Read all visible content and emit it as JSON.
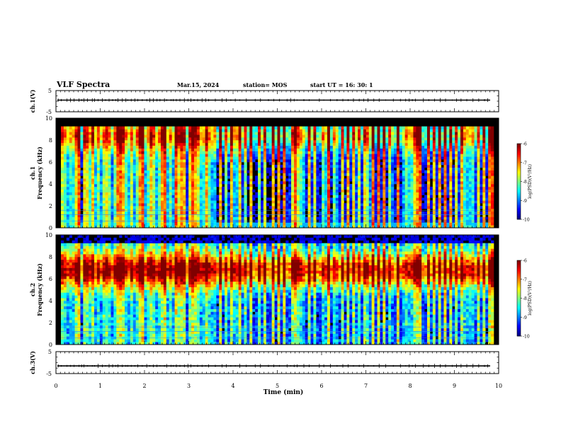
{
  "header": {
    "title": "VLF Spectra",
    "date": "Mar.15, 2024",
    "station": "station= MOS",
    "start_ut": "start  UT  =  16: 30: 1"
  },
  "chart_data": [
    {
      "type": "line",
      "id": "ch1-waveform",
      "ylabel": "ch.1(V)",
      "yticks": [
        "5",
        "-5"
      ],
      "ylim": [
        -5,
        5
      ],
      "baseline": 0.5
    },
    {
      "type": "heatmap",
      "id": "ch1-spectrogram",
      "ylabel": "ch.1\nFrequency (kHz)",
      "ylabel_lines": [
        "ch.1",
        "Frequency (kHz)"
      ],
      "ylim": [
        0,
        10
      ],
      "yticks": [
        "0",
        "2",
        "4",
        "6",
        "8",
        "10"
      ],
      "colorbar": {
        "label": "log(PSD)(V²/Hz)",
        "ticks": [
          "-6",
          "-7",
          "-8",
          "-9",
          "-10"
        ],
        "range": [
          -10,
          -6
        ]
      }
    },
    {
      "type": "heatmap",
      "id": "ch2-spectrogram",
      "ylabel": "ch.2\nFrequency (kHz)",
      "ylabel_lines": [
        "ch.2",
        "Frequency (kHz)"
      ],
      "ylim": [
        0,
        10
      ],
      "yticks": [
        "0",
        "2",
        "4",
        "6",
        "8",
        "10"
      ],
      "colorbar": {
        "label": "log(PSD)(V²/Hz)",
        "ticks": [
          "-6",
          "-7",
          "-8",
          "-9",
          "-10"
        ],
        "range": [
          -10,
          -6
        ]
      }
    },
    {
      "type": "line",
      "id": "ch3-waveform",
      "ylabel": "ch.3(V)",
      "yticks": [
        "5",
        "-5"
      ],
      "ylim": [
        -5,
        5
      ],
      "baseline": -1.5
    }
  ],
  "xaxis": {
    "label": "Time  (min)",
    "xlim": [
      0,
      10
    ],
    "ticks": [
      "0",
      "1",
      "2",
      "3",
      "4",
      "5",
      "6",
      "7",
      "8",
      "9",
      "10"
    ]
  },
  "sferics_min": [
    0.05,
    0.12,
    0.25,
    0.33,
    0.41,
    0.52,
    0.58,
    0.63,
    0.71,
    0.82,
    0.87,
    0.95,
    1.05,
    1.12,
    1.2,
    1.28,
    1.35,
    1.4,
    1.5,
    1.58,
    1.62,
    1.7,
    1.78,
    1.85,
    1.95,
    2.05,
    2.12,
    2.2,
    2.28,
    2.35,
    2.45,
    2.5,
    2.6,
    2.65,
    2.72,
    2.8,
    2.9,
    2.98,
    3.05,
    3.12,
    3.2,
    3.3,
    3.38,
    3.45,
    3.6,
    3.75,
    3.85,
    3.95,
    4.05,
    4.15,
    4.3,
    4.5,
    4.62,
    4.8,
    4.92,
    5.05,
    5.22,
    5.3,
    5.38,
    5.45,
    5.6,
    5.72,
    5.95,
    6.05,
    6.2,
    6.35,
    6.48,
    6.6,
    6.72,
    6.85,
    6.95,
    7.05,
    7.18,
    7.3,
    7.45,
    7.62,
    7.78,
    7.9,
    7.98,
    8.05,
    8.12,
    8.3,
    8.42,
    8.55,
    8.68,
    8.8,
    8.95,
    9.05,
    9.15,
    9.28,
    9.42,
    9.55,
    9.68,
    9.75
  ],
  "colors": {
    "background": "#ffffff",
    "plot_floor": "#000000",
    "text": "#000000"
  }
}
